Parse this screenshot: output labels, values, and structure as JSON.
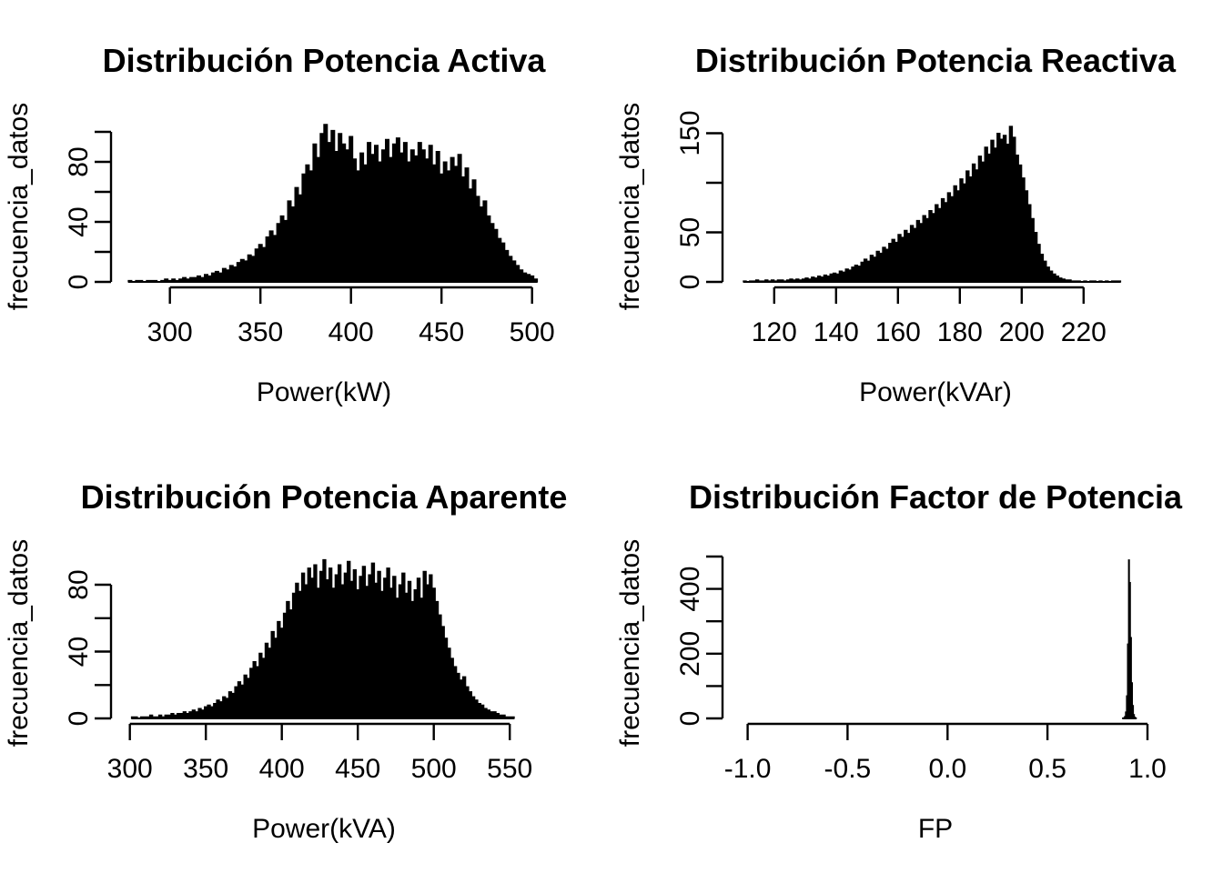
{
  "figure": {
    "background": "#ffffff",
    "ink": "#000000",
    "bar_fill": "#000000",
    "bar_border": "#000000"
  },
  "chart_data": [
    {
      "type": "bar",
      "subtype": "histogram",
      "title": "Distribución Potencia Activa",
      "xlabel": "Power(kW)",
      "ylabel": "frecuencia_datos",
      "xlim": [
        267,
        513
      ],
      "ylim": [
        0,
        105
      ],
      "grid": false,
      "legend": "none",
      "x_ticks": [
        300,
        350,
        400,
        450,
        500
      ],
      "x_tick_labels": [
        "300",
        "350",
        "400",
        "450",
        "500"
      ],
      "y_ticks": [
        0,
        20,
        40,
        60,
        80,
        100
      ],
      "y_tick_labels": [
        "0",
        "",
        "40",
        "",
        "80",
        ""
      ],
      "bin_start": 277,
      "bin_width": 2,
      "heights": [
        1,
        0,
        1,
        1,
        0,
        1,
        1,
        1,
        0,
        1,
        2,
        1,
        2,
        1,
        2,
        3,
        2,
        3,
        3,
        4,
        3,
        5,
        4,
        6,
        7,
        6,
        9,
        8,
        11,
        10,
        13,
        15,
        14,
        18,
        17,
        22,
        25,
        23,
        30,
        34,
        31,
        39,
        44,
        41,
        54,
        50,
        63,
        58,
        72,
        78,
        74,
        92,
        83,
        99,
        105,
        93,
        101,
        87,
        99,
        92,
        88,
        97,
        82,
        74,
        86,
        78,
        93,
        85,
        91,
        80,
        88,
        95,
        83,
        92,
        96,
        86,
        93,
        80,
        88,
        84,
        93,
        88,
        82,
        91,
        78,
        87,
        72,
        80,
        74,
        83,
        77,
        85,
        70,
        76,
        62,
        68,
        57,
        50,
        54,
        44,
        39,
        35,
        29,
        26,
        21,
        17,
        14,
        11,
        8,
        6,
        5,
        4,
        2
      ],
      "layout": {
        "x_u0": 267,
        "x_scale": 1.99,
        "y_scale": 1.65
      }
    },
    {
      "type": "bar",
      "subtype": "histogram",
      "title": "Distribución Potencia Reactiva",
      "xlabel": "Power(kVAr)",
      "ylabel": "frecuencia_datos",
      "xlim": [
        103,
        247
      ],
      "ylim": [
        0,
        157
      ],
      "grid": false,
      "legend": "none",
      "x_ticks": [
        120,
        140,
        160,
        180,
        200,
        220
      ],
      "x_tick_labels": [
        "120",
        "140",
        "160",
        "180",
        "200",
        "220"
      ],
      "y_ticks": [
        0,
        50,
        100,
        150
      ],
      "y_tick_labels": [
        "0",
        "50",
        "",
        "150"
      ],
      "bin_start": 110,
      "bin_width": 1,
      "heights": [
        1,
        0,
        1,
        1,
        2,
        1,
        1,
        2,
        1,
        2,
        1,
        2,
        2,
        1,
        2,
        3,
        2,
        3,
        2,
        3,
        4,
        3,
        5,
        4,
        6,
        5,
        7,
        6,
        8,
        9,
        8,
        11,
        10,
        13,
        12,
        15,
        17,
        16,
        20,
        23,
        21,
        27,
        25,
        31,
        29,
        35,
        33,
        39,
        43,
        40,
        48,
        45,
        52,
        49,
        57,
        54,
        62,
        59,
        67,
        64,
        72,
        69,
        78,
        74,
        84,
        80,
        90,
        86,
        97,
        92,
        104,
        99,
        112,
        106,
        119,
        113,
        127,
        121,
        136,
        129,
        143,
        135,
        150,
        144,
        148,
        139,
        157,
        146,
        128,
        118,
        105,
        92,
        78,
        64,
        50,
        38,
        28,
        21,
        15,
        11,
        8,
        6,
        4,
        3,
        2,
        2,
        1,
        1,
        1,
        0,
        1,
        0,
        1,
        1,
        0,
        1,
        0,
        1,
        0,
        1,
        1,
        1
      ],
      "layout": {
        "x_u0": 103,
        "x_scale": 3.4,
        "y_scale": 1.09
      }
    },
    {
      "type": "bar",
      "subtype": "histogram",
      "title": "Distribución Potencia Aparente",
      "xlabel": "Power(kVA)",
      "ylabel": "frecuencia_datos",
      "xlim": [
        287,
        581
      ],
      "ylim": [
        0,
        95
      ],
      "grid": false,
      "legend": "none",
      "x_ticks": [
        300,
        350,
        400,
        450,
        500,
        550
      ],
      "x_tick_labels": [
        "300",
        "350",
        "400",
        "450",
        "500",
        "550"
      ],
      "y_ticks": [
        0,
        20,
        40,
        60,
        80
      ],
      "y_tick_labels": [
        "0",
        "",
        "40",
        "",
        "80"
      ],
      "bin_start": 301,
      "bin_width": 2,
      "heights": [
        1,
        1,
        0,
        1,
        1,
        1,
        2,
        1,
        1,
        2,
        1,
        2,
        2,
        3,
        2,
        3,
        3,
        4,
        3,
        4,
        5,
        4,
        6,
        5,
        7,
        8,
        7,
        9,
        11,
        10,
        13,
        12,
        16,
        15,
        19,
        22,
        20,
        26,
        24,
        30,
        34,
        31,
        39,
        36,
        45,
        42,
        52,
        48,
        58,
        54,
        63,
        70,
        65,
        75,
        81,
        76,
        87,
        80,
        90,
        84,
        92,
        78,
        88,
        95,
        83,
        90,
        78,
        86,
        92,
        80,
        87,
        94,
        82,
        89,
        77,
        85,
        91,
        79,
        86,
        93,
        81,
        88,
        76,
        84,
        90,
        78,
        85,
        72,
        80,
        87,
        75,
        82,
        70,
        77,
        84,
        72,
        88,
        80,
        86,
        78,
        70,
        62,
        55,
        48,
        42,
        36,
        31,
        27,
        23,
        25,
        19,
        16,
        13,
        11,
        9,
        8,
        6,
        5,
        4,
        4,
        3,
        2,
        2,
        1,
        1,
        1
      ],
      "layout": {
        "x_u0": 287,
        "x_scale": 1.67,
        "y_scale": 1.8375
      }
    },
    {
      "type": "bar",
      "subtype": "histogram",
      "title": "Distribución Factor de Potencia",
      "xlabel": "FP",
      "ylabel": "frecuencia_datos",
      "xlim": [
        -1.13,
        1.1
      ],
      "ylim": [
        0,
        500
      ],
      "grid": false,
      "legend": "none",
      "x_ticks": [
        -1.0,
        -0.5,
        0.0,
        0.5,
        1.0
      ],
      "x_tick_labels": [
        "-1.0",
        "-0.5",
        "0.0",
        "0.5",
        "1.0"
      ],
      "y_ticks": [
        0,
        100,
        200,
        300,
        400,
        500
      ],
      "y_tick_labels": [
        "0",
        "",
        "200",
        "",
        "400",
        ""
      ],
      "bin_start": 0.875,
      "bin_width": 0.005,
      "heights": [
        1,
        2,
        6,
        20,
        70,
        230,
        490,
        420,
        250,
        110,
        40,
        12,
        4,
        1
      ],
      "layout": {
        "x_u0": -1.13,
        "x_scale": 219.7,
        "y_scale": 0.356
      }
    }
  ]
}
